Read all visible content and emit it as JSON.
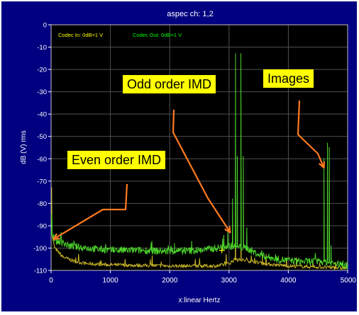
{
  "chart_data": {
    "type": "line",
    "title": "aspec ch: 1,2",
    "xlabel": "x:linear Hertz",
    "ylabel": "dB (V) rms",
    "xlim": [
      0,
      5000
    ],
    "ylim": [
      -110,
      0
    ],
    "x_ticks": [
      "0",
      "1000",
      "2000",
      "3000",
      "4000",
      "5000"
    ],
    "y_ticks": [
      "0",
      "-10",
      "-20",
      "-30",
      "-40",
      "-50",
      "-60",
      "-70",
      "-80",
      "-90",
      "-100",
      "-110"
    ],
    "grid": true,
    "legend": [
      "Codec In: 0dB=1 V",
      "Codec Out: 0dB=1 V"
    ],
    "series": [
      {
        "name": "Codec In: 0dB=1 V",
        "color": "#c8b428",
        "baseline": [
          [
            0,
            -84
          ],
          [
            20,
            -95
          ],
          [
            60,
            -100
          ],
          [
            200,
            -104
          ],
          [
            400,
            -106
          ],
          [
            600,
            -107
          ],
          [
            1000,
            -107.5
          ],
          [
            2000,
            -108
          ],
          [
            2800,
            -108
          ],
          [
            3000,
            -107
          ],
          [
            3100,
            -105
          ],
          [
            3400,
            -106
          ],
          [
            3600,
            -107
          ],
          [
            4000,
            -108
          ],
          [
            4500,
            -108.5
          ],
          [
            5000,
            -109
          ]
        ],
        "peaks": [
          [
            10,
            -73
          ],
          [
            3110,
            -80
          ],
          [
            3200,
            -60
          ],
          [
            3560,
            -103
          ]
        ]
      },
      {
        "name": "Codec Out: 0dB=1 V",
        "color": "#4cd62a",
        "baseline": [
          [
            0,
            -93
          ],
          [
            60,
            -97
          ],
          [
            150,
            -97
          ],
          [
            300,
            -99
          ],
          [
            600,
            -100
          ],
          [
            1000,
            -101
          ],
          [
            1500,
            -101
          ],
          [
            2000,
            -101.5
          ],
          [
            2500,
            -101
          ],
          [
            2800,
            -100
          ],
          [
            3000,
            -99
          ],
          [
            3300,
            -100
          ],
          [
            3500,
            -103
          ],
          [
            3800,
            -105
          ],
          [
            4200,
            -106
          ],
          [
            4600,
            -106
          ],
          [
            4800,
            -107
          ],
          [
            5000,
            -108
          ]
        ],
        "peaks": [
          [
            10,
            -85
          ],
          [
            1700,
            -97
          ],
          [
            2080,
            -98
          ],
          [
            2370,
            -97
          ],
          [
            2890,
            -96
          ],
          [
            2980,
            -92
          ],
          [
            3060,
            -78
          ],
          [
            3110,
            -13
          ],
          [
            3140,
            -59
          ],
          [
            3200,
            -13
          ],
          [
            3240,
            -59
          ],
          [
            3300,
            -91
          ],
          [
            4600,
            -60
          ],
          [
            4660,
            -53
          ],
          [
            4690,
            -55
          ],
          [
            4720,
            -99
          ]
        ]
      }
    ],
    "cursor": {
      "x": 2880,
      "y": -101
    },
    "annotations": [
      {
        "text": "Odd order IMD",
        "target": [
          3020,
          -93
        ]
      },
      {
        "text": "Images",
        "target": [
          4600,
          -64
        ]
      },
      {
        "text": "Even order IMD",
        "target": [
          40,
          -96
        ]
      }
    ]
  },
  "colors": {
    "background": "#000080",
    "plot_background": "#000000",
    "grid": "#505050",
    "axis_text": "#ffffff",
    "arrow": "#ff7a20",
    "annotation_fill": "#ffff00"
  }
}
